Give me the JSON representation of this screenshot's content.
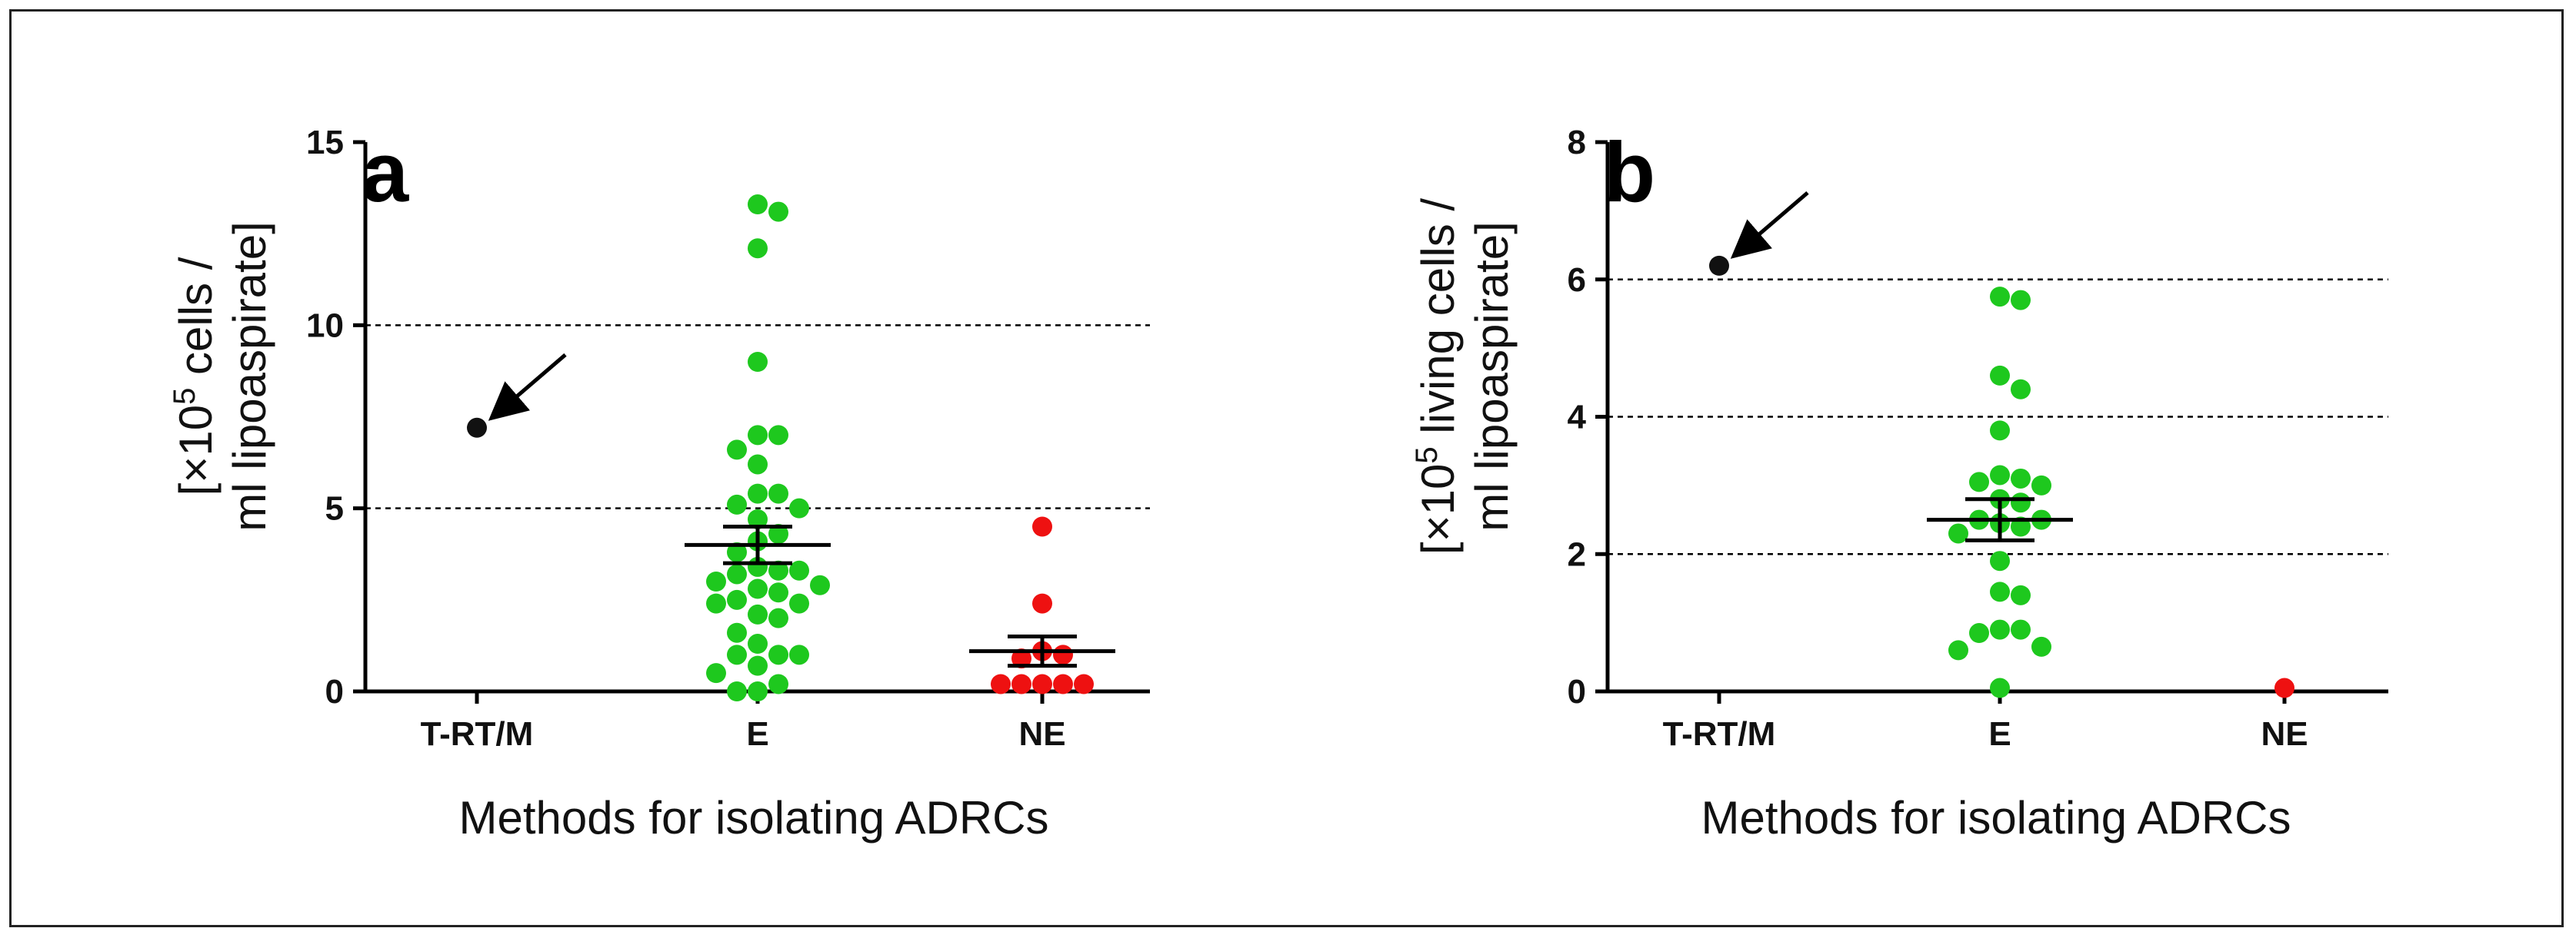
{
  "figure": {
    "description_visible": ""
  },
  "colors": {
    "E": "#1ec81e",
    "NE": "#ee1111",
    "T-RT/M": "#111111",
    "axis": "#000000",
    "grid": "#000000",
    "errorbar": "#000000"
  },
  "chart_data": [
    {
      "type": "scatter",
      "panel_label": "a",
      "categories": [
        "T-RT/M",
        "E",
        "NE"
      ],
      "xlabel": "Methods for isolating  ADRCs",
      "ylabel_line1": "[×10",
      "ylabel_sup": "5",
      "ylabel_line1_rest": " cells /",
      "ylabel_line2": "ml lipoaspirate]",
      "ylim": [
        0,
        15
      ],
      "yticks": [
        0,
        5,
        10,
        15
      ],
      "ytick_labels": [
        "0",
        "5",
        "10",
        "15"
      ],
      "gridlines": [
        5,
        10
      ],
      "arrow_target": "T-RT/M",
      "series": [
        {
          "name": "T-RT/M",
          "values": [
            7.2
          ]
        },
        {
          "name": "E",
          "values": [
            13.3,
            13.1,
            12.1,
            9.0,
            7.0,
            7.0,
            6.6,
            6.2,
            5.4,
            5.4,
            5.1,
            5.0,
            4.7,
            4.3,
            4.1,
            3.8,
            3.4,
            3.3,
            3.3,
            3.2,
            3.0,
            2.9,
            2.8,
            2.7,
            2.5,
            2.4,
            2.4,
            2.1,
            2.0,
            1.6,
            1.3,
            1.0,
            1.0,
            1.0,
            0.7,
            0.5,
            0.2,
            0.0,
            0.0
          ]
        },
        {
          "name": "NE",
          "values": [
            4.5,
            2.4,
            1.1,
            1.0,
            0.9,
            0.2,
            0.2,
            0.2,
            0.2,
            0.2
          ]
        }
      ],
      "summary": [
        {
          "name": "E",
          "mean": 4.0,
          "sem": 0.5
        },
        {
          "name": "NE",
          "mean": 1.1,
          "sem": 0.4
        }
      ]
    },
    {
      "type": "scatter",
      "panel_label": "b",
      "categories": [
        "T-RT/M",
        "E",
        "NE"
      ],
      "xlabel": "Methods for isolating  ADRCs",
      "ylabel_line1": "[×10",
      "ylabel_sup": "5",
      "ylabel_line1_rest": " living cells /",
      "ylabel_line2": "ml lipoaspirate]",
      "ylim": [
        0,
        8
      ],
      "yticks": [
        0,
        2,
        4,
        6,
        8
      ],
      "ytick_labels": [
        "0",
        "2",
        "4",
        "6",
        "8"
      ],
      "gridlines": [
        2,
        4,
        6
      ],
      "arrow_target": "T-RT/M",
      "series": [
        {
          "name": "T-RT/M",
          "values": [
            6.2
          ]
        },
        {
          "name": "E",
          "values": [
            5.75,
            5.7,
            4.6,
            4.4,
            3.8,
            3.15,
            3.1,
            3.05,
            3.0,
            2.8,
            2.75,
            2.5,
            2.5,
            2.45,
            2.4,
            2.3,
            1.9,
            1.45,
            1.4,
            0.9,
            0.9,
            0.85,
            0.65,
            0.6,
            0.05
          ]
        },
        {
          "name": "NE",
          "values": [
            0.05
          ]
        }
      ],
      "summary": [
        {
          "name": "E",
          "mean": 2.5,
          "sem": 0.3
        }
      ]
    }
  ]
}
